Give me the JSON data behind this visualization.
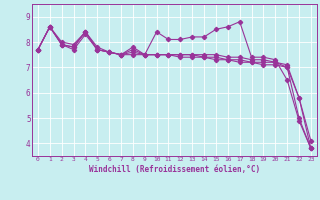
{
  "xlabel": "Windchill (Refroidissement éolien,°C)",
  "background_color": "#c8eef0",
  "line_color": "#993399",
  "grid_color": "#ffffff",
  "xlim": [
    -0.5,
    23.5
  ],
  "ylim": [
    3.5,
    9.5
  ],
  "yticks": [
    4,
    5,
    6,
    7,
    8,
    9
  ],
  "xticks": [
    0,
    1,
    2,
    3,
    4,
    5,
    6,
    7,
    8,
    9,
    10,
    11,
    12,
    13,
    14,
    15,
    16,
    17,
    18,
    19,
    20,
    21,
    22,
    23
  ],
  "series": [
    [
      7.7,
      8.6,
      7.9,
      7.8,
      8.4,
      7.7,
      7.6,
      7.5,
      7.8,
      7.5,
      8.4,
      8.1,
      8.1,
      8.2,
      8.2,
      8.5,
      8.6,
      8.8,
      7.4,
      7.4,
      7.3,
      6.5,
      4.9,
      3.8
    ],
    [
      7.7,
      8.6,
      7.9,
      7.7,
      8.3,
      7.7,
      7.6,
      7.5,
      7.7,
      7.5,
      7.5,
      7.5,
      7.5,
      7.5,
      7.4,
      7.4,
      7.3,
      7.3,
      7.2,
      7.2,
      7.2,
      7.0,
      5.8,
      4.1
    ],
    [
      7.7,
      8.6,
      8.0,
      7.9,
      8.4,
      7.8,
      7.6,
      7.5,
      7.6,
      7.5,
      7.5,
      7.5,
      7.5,
      7.5,
      7.5,
      7.5,
      7.4,
      7.4,
      7.3,
      7.3,
      7.2,
      7.1,
      5.8,
      3.8
    ],
    [
      7.7,
      8.6,
      7.9,
      7.8,
      8.4,
      7.7,
      7.6,
      7.5,
      7.5,
      7.5,
      7.5,
      7.5,
      7.4,
      7.4,
      7.4,
      7.3,
      7.3,
      7.2,
      7.2,
      7.1,
      7.1,
      7.0,
      5.0,
      3.8
    ]
  ],
  "marker": "D",
  "markersize": 2.2,
  "linewidth": 0.8
}
